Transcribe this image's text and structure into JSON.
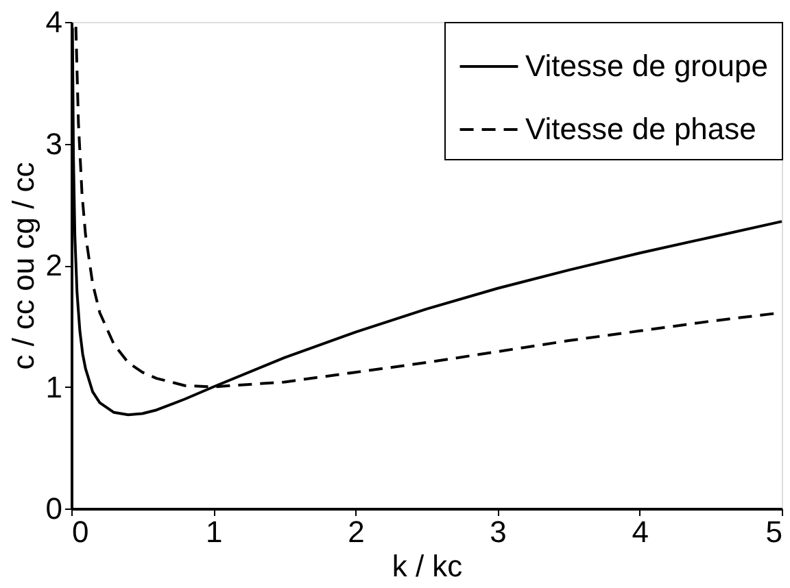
{
  "chart_data": {
    "type": "line",
    "xlabel": "k / kc",
    "ylabel": "c / cc  ou  cg / cc",
    "xlim": [
      0,
      5
    ],
    "ylim": [
      0,
      4
    ],
    "xticks": [
      0,
      1,
      2,
      3,
      4,
      5
    ],
    "yticks": [
      0,
      1,
      2,
      3,
      4
    ],
    "grid": false,
    "legend": "top right",
    "marker": "none",
    "series": [
      {
        "name": "Vitesse de groupe",
        "color": "#000000",
        "line_style": "solid",
        "x": [
          0.008,
          0.015,
          0.025,
          0.04,
          0.06,
          0.08,
          0.1,
          0.15,
          0.2,
          0.3,
          0.4,
          0.5,
          0.6,
          0.8,
          1,
          1.5,
          2,
          2.5,
          3,
          3.5,
          4,
          4.5,
          5
        ],
        "values": [
          3.95,
          2.89,
          2.24,
          1.78,
          1.46,
          1.27,
          1.15,
          0.96,
          0.87,
          0.79,
          0.77,
          0.78,
          0.81,
          0.9,
          1.0,
          1.24,
          1.45,
          1.64,
          1.81,
          1.96,
          2.1,
          2.23,
          2.36
        ]
      },
      {
        "name": "Vitesse de phase",
        "color": "#000000",
        "line_style": "dashed",
        "x": [
          0.032,
          0.05,
          0.075,
          0.1,
          0.15,
          0.2,
          0.3,
          0.4,
          0.5,
          0.6,
          0.8,
          1,
          1.5,
          2,
          2.5,
          3,
          3.5,
          4,
          4.5,
          5
        ],
        "values": [
          3.96,
          3.17,
          2.59,
          2.25,
          1.85,
          1.61,
          1.35,
          1.2,
          1.12,
          1.07,
          1.01,
          1.0,
          1.04,
          1.12,
          1.2,
          1.29,
          1.38,
          1.46,
          1.54,
          1.61
        ]
      }
    ]
  }
}
